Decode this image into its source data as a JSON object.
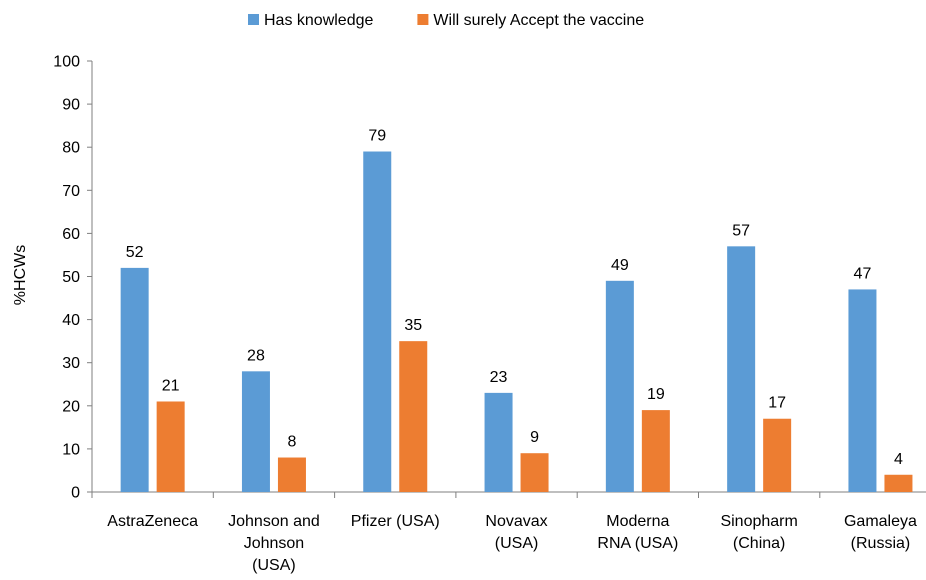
{
  "chart_data": {
    "type": "bar",
    "title": "",
    "xlabel": "",
    "ylabel": "%HCWs",
    "ylim": [
      0,
      100
    ],
    "ytick_step": 10,
    "grid": false,
    "legend_position": "top-center",
    "categories": [
      [
        "AstraZeneca"
      ],
      [
        "Johnson and",
        "Johnson",
        "(USA)"
      ],
      [
        "Pfizer  (USA)"
      ],
      [
        "Novavax",
        "(USA)"
      ],
      [
        "Moderna",
        "RNA (USA)"
      ],
      [
        "Sinopharm",
        "(China)"
      ],
      [
        "Gamaleya",
        "(Russia)"
      ]
    ],
    "series": [
      {
        "name": "Has knowledge",
        "color": "#5B9BD5",
        "values": [
          52,
          28,
          79,
          23,
          49,
          57,
          47
        ],
        "labels": [
          "52",
          "28",
          "79",
          "23",
          "49",
          "57",
          "47"
        ]
      },
      {
        "name": "Will surely Accept the vaccine",
        "color": "#ED7D31",
        "values": [
          21,
          8,
          35,
          9,
          19,
          17,
          4
        ],
        "labels": [
          "21",
          "8",
          "35",
          "9",
          "19",
          "17",
          "4"
        ]
      }
    ]
  }
}
